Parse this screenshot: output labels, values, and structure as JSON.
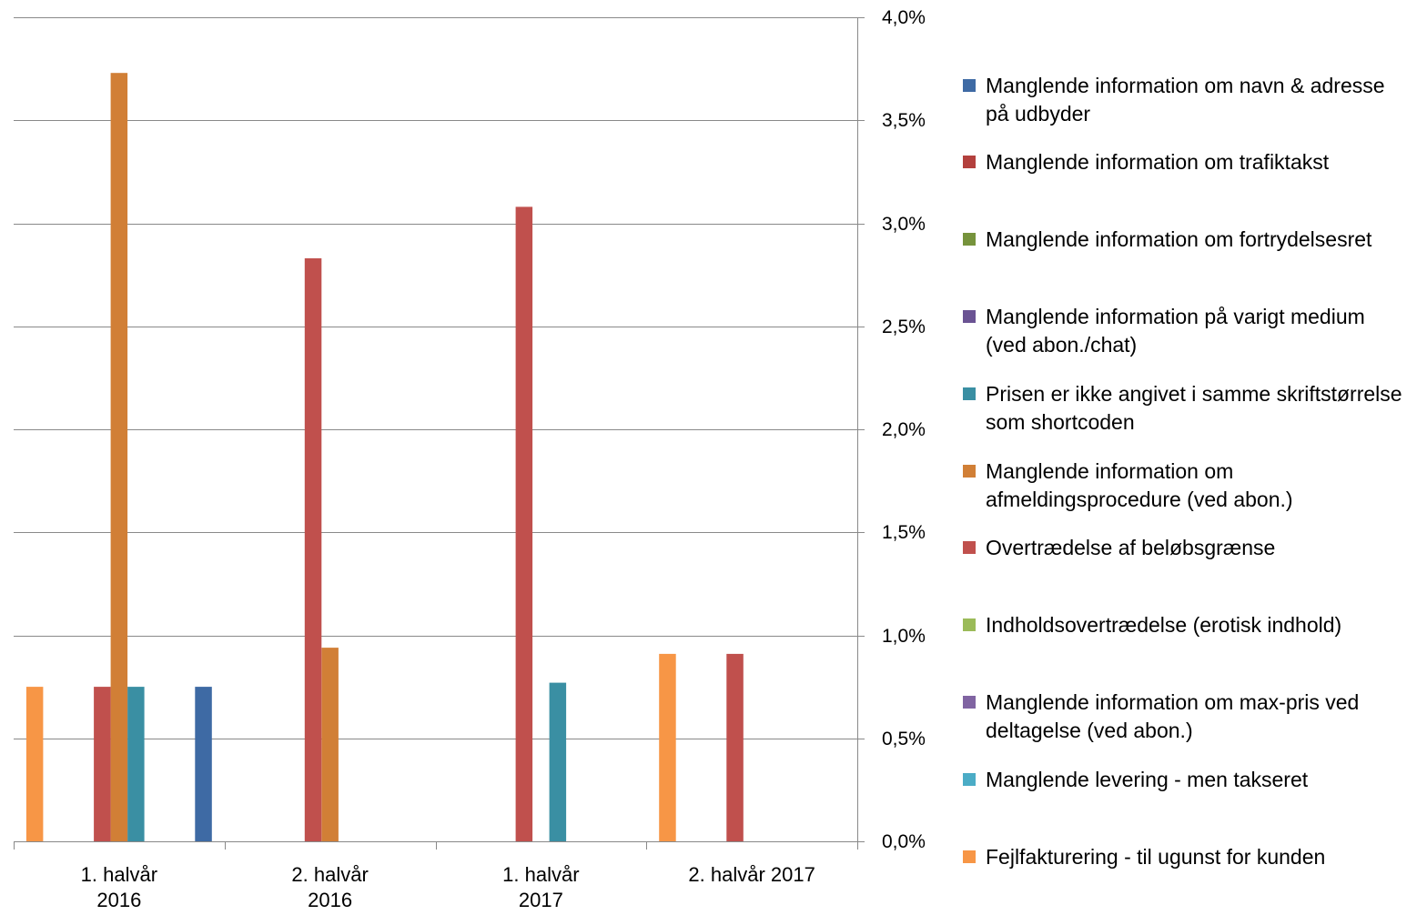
{
  "chart_data": {
    "type": "bar",
    "categories": [
      "1. halvår 2016",
      "2. halvår 2016",
      "1. halvår 2017",
      "2. halvår 2017"
    ],
    "ylim": [
      0,
      4.0
    ],
    "ytick_values": [
      0,
      0.5,
      1.0,
      1.5,
      2.0,
      2.5,
      3.0,
      3.5,
      4.0
    ],
    "ytick_labels": [
      "0,0%",
      "0,5%",
      "1,0%",
      "1,5%",
      "2,0%",
      "2,5%",
      "3,0%",
      "3,5%",
      "4,0%"
    ],
    "yaxis_position": "right",
    "grid": true,
    "legend_position": "right",
    "series": [
      {
        "name": "Manglende information om navn & adresse på udbyder",
        "color": "#3E6AA4",
        "values": [
          0.75,
          0,
          0,
          0
        ]
      },
      {
        "name": "Manglende information om trafiktakst",
        "color": "#B3403D",
        "values": [
          0,
          0,
          0,
          0
        ]
      },
      {
        "name": "Manglende information om fortrydelsesret",
        "color": "#76933C",
        "values": [
          0,
          0,
          0,
          0
        ]
      },
      {
        "name": "Manglende information på varigt medium (ved abon./chat)",
        "color": "#6A5393",
        "values": [
          0,
          0,
          0,
          0
        ]
      },
      {
        "name": "Prisen er ikke angivet i samme skriftstørrelse som shortcoden",
        "color": "#3A8FA3",
        "values": [
          0.75,
          0,
          0.77,
          0
        ]
      },
      {
        "name": "Manglende information om afmeldingsprocedure (ved abon.)",
        "color": "#D17F36",
        "values": [
          3.73,
          0.94,
          0,
          0
        ]
      },
      {
        "name": "Overtrædelse af beløbsgrænse",
        "color": "#C0504D",
        "values": [
          0.75,
          2.83,
          3.08,
          0.91
        ]
      },
      {
        "name": "Indholdsovertrædelse (erotisk indhold)",
        "color": "#9BBB59",
        "values": [
          0,
          0,
          0,
          0
        ]
      },
      {
        "name": "Manglende information om max-pris ved deltagelse (ved abon.)",
        "color": "#8064A2",
        "values": [
          0,
          0,
          0,
          0
        ]
      },
      {
        "name": "Manglende levering - men takseret",
        "color": "#4BACC6",
        "values": [
          0,
          0,
          0,
          0
        ]
      },
      {
        "name": "Fejlfakturering - til ugunst for kunden",
        "color": "#F79646",
        "values": [
          0.75,
          0,
          0,
          0.91
        ]
      }
    ]
  }
}
